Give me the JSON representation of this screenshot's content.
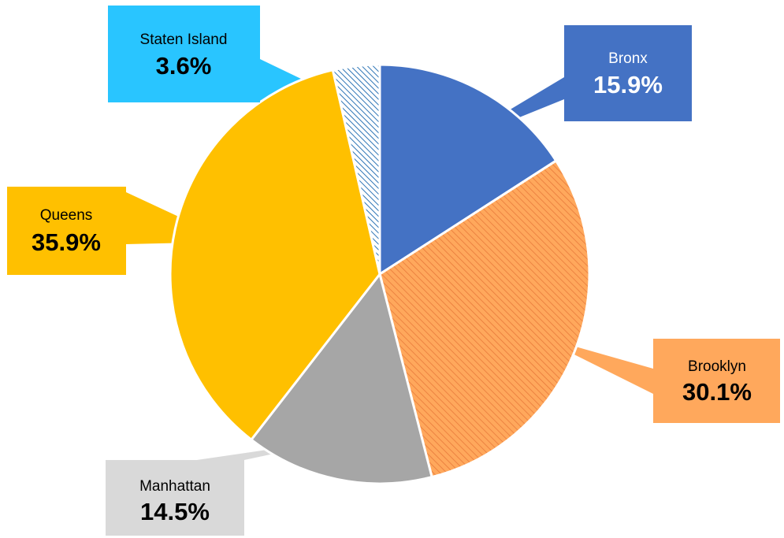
{
  "chart_data": {
    "type": "pie",
    "slices": [
      {
        "label": "Bronx",
        "value": 15.9,
        "value_text": "15.9%",
        "color": "#4472C4",
        "pattern": "solid",
        "text_color": "#ffffff"
      },
      {
        "label": "Brooklyn",
        "value": 30.1,
        "value_text": "30.1%",
        "color": "#FFA85C",
        "pattern": "diagonal-hatch",
        "text_color": "#000000"
      },
      {
        "label": "Manhattan",
        "value": 14.5,
        "value_text": "14.5%",
        "color": "#A6A6A6",
        "pattern": "solid",
        "text_color": "#000000",
        "callout_color": "#D9D9D9"
      },
      {
        "label": "Queens",
        "value": 35.9,
        "value_text": "35.9%",
        "color": "#FFC000",
        "pattern": "solid",
        "text_color": "#000000"
      },
      {
        "label": "Staten Island",
        "value": 3.6,
        "value_text": "3.6%",
        "color": "#2E75B6",
        "pattern": "diagonal-hatch",
        "text_color": "#000000",
        "callout_color": "#29C5FF"
      }
    ],
    "start_angle": "12 o'clock",
    "direction": "clockwise",
    "legend": "none",
    "labels": "callout boxes"
  }
}
